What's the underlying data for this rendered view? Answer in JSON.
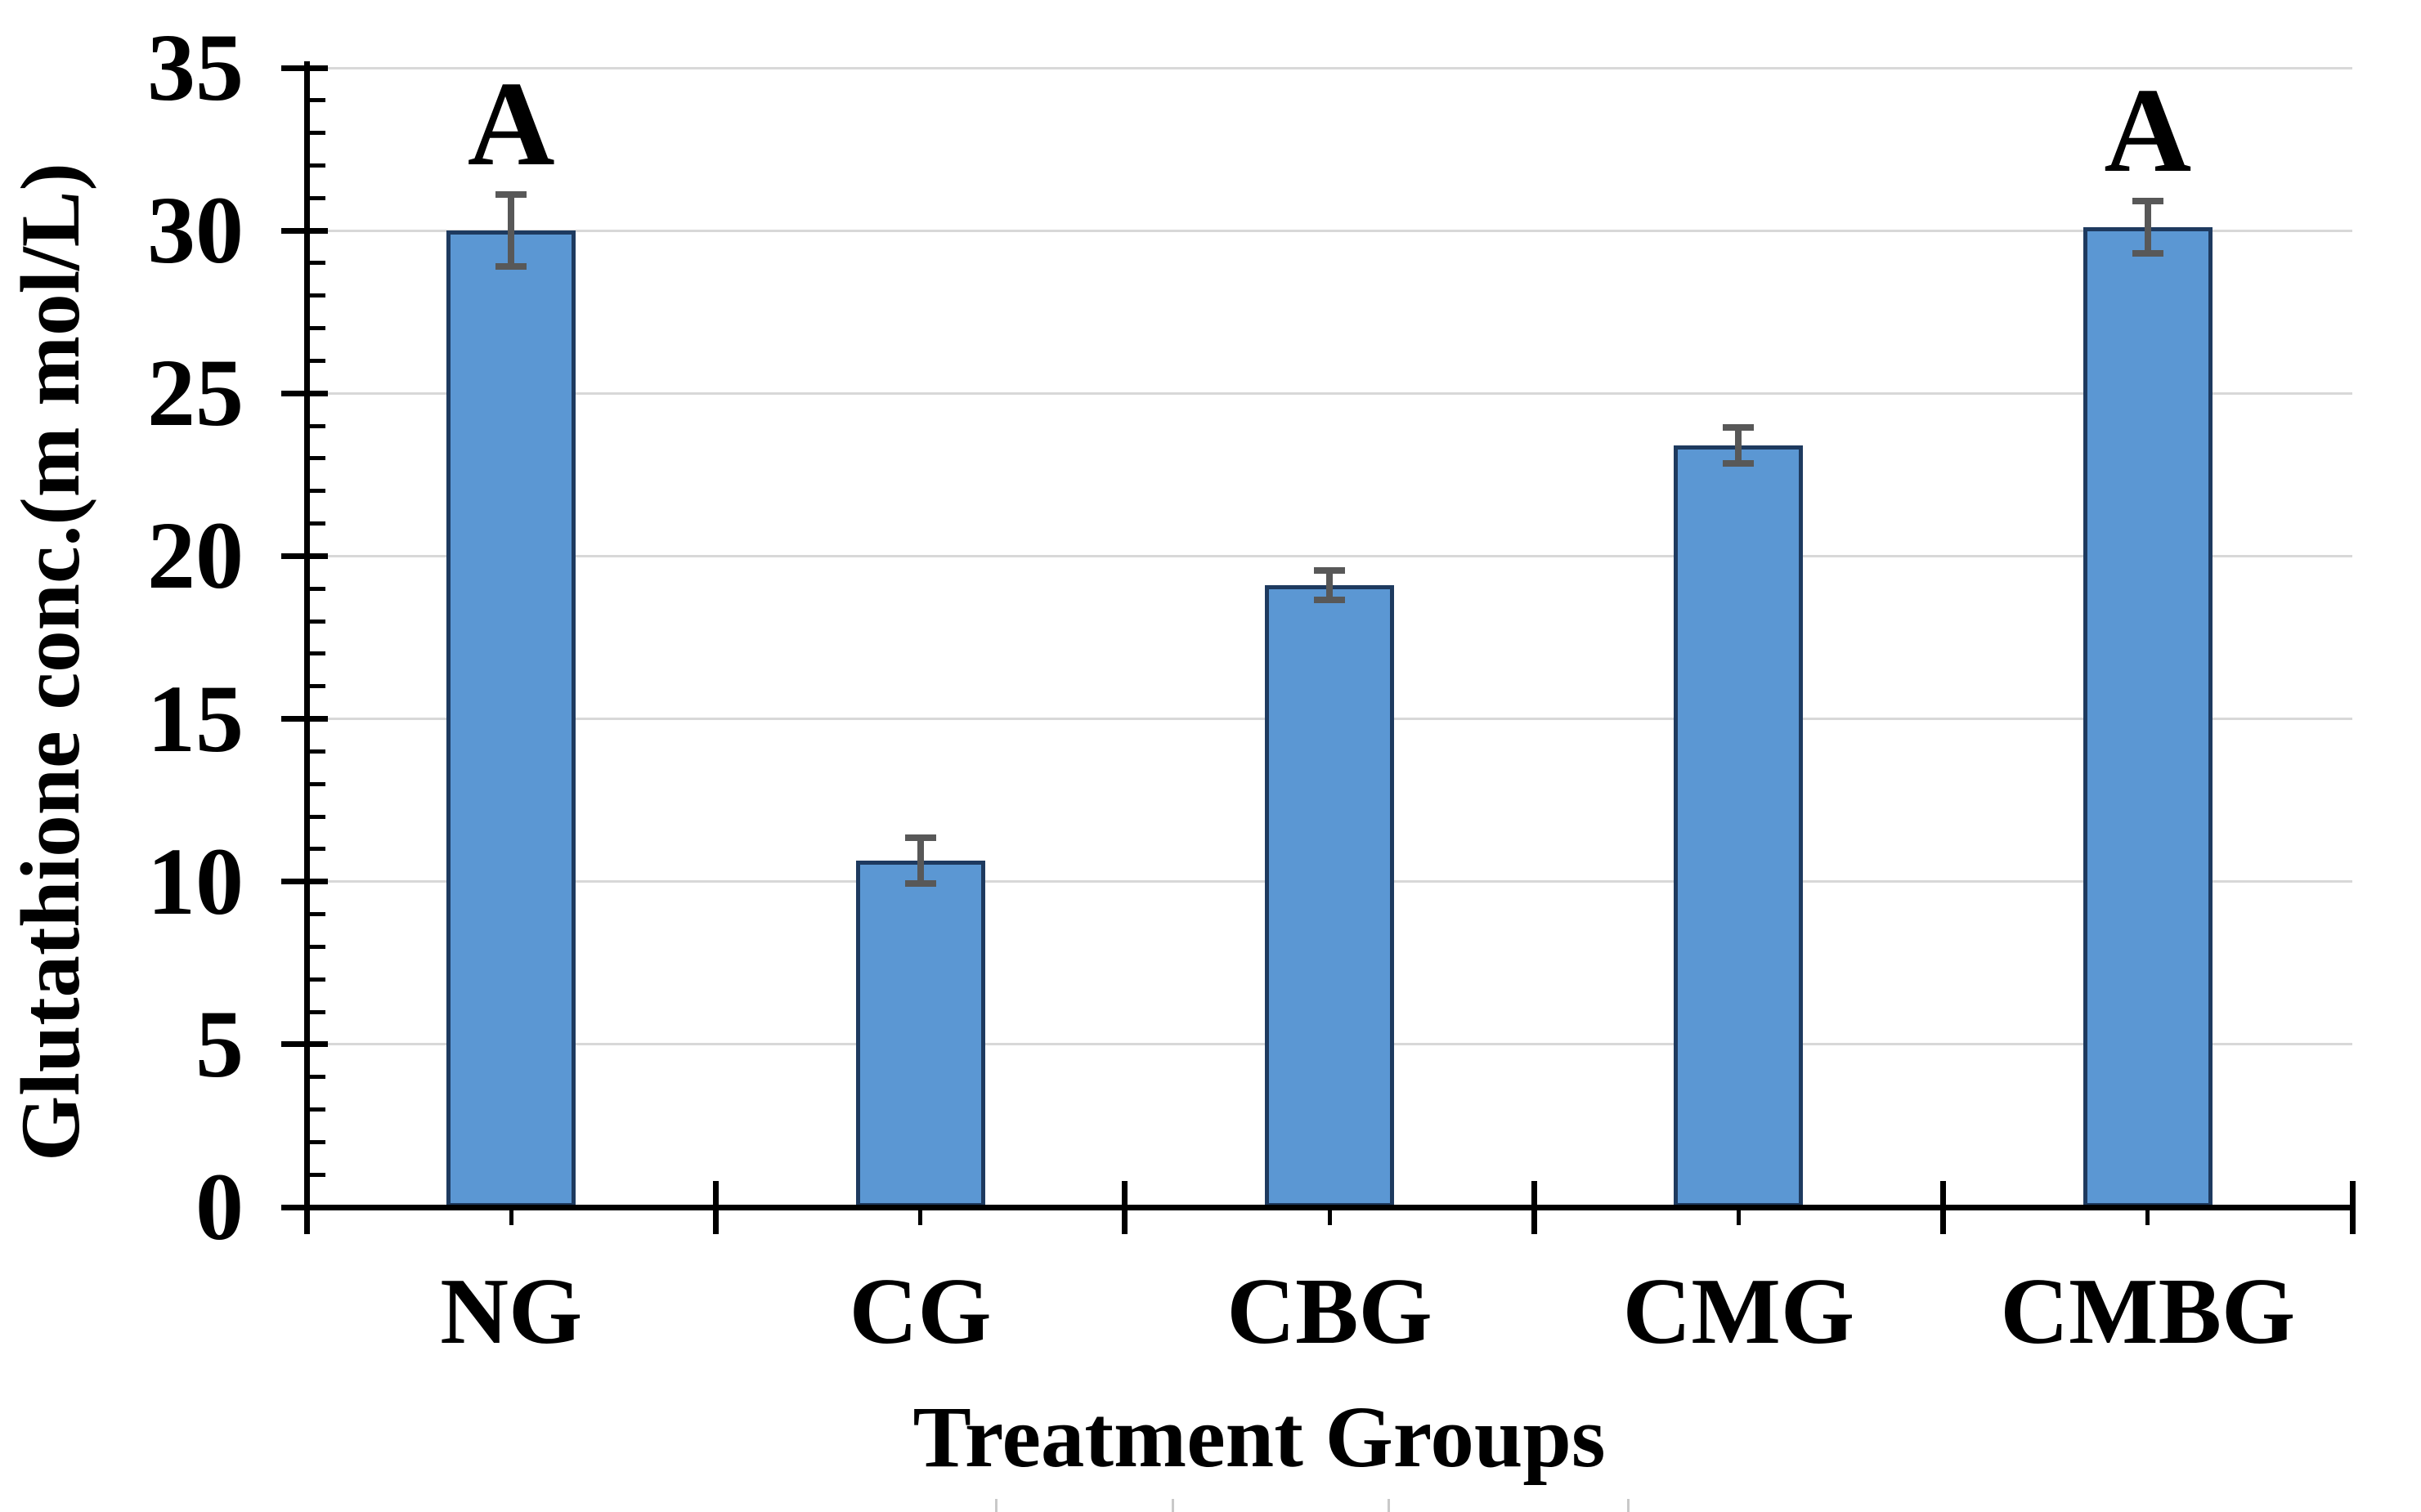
{
  "chart_data": {
    "type": "bar",
    "title": "",
    "xlabel": "Treatment Groups",
    "ylabel": "Glutathione conc.(m mol/L)",
    "categories": [
      "NG",
      "CG",
      "CBG",
      "CMG",
      "CMBG"
    ],
    "values": [
      30.0,
      10.65,
      19.1,
      23.4,
      30.1
    ],
    "error_bars": [
      1.1,
      0.7,
      0.45,
      0.55,
      0.8
    ],
    "significance_letters": [
      "A",
      "",
      "",
      "",
      "A"
    ],
    "ylim": [
      0,
      35
    ],
    "y_major_step": 5,
    "y_minor_step": 1,
    "y_tick_labels": [
      "0",
      "5",
      "10",
      "15",
      "20",
      "25",
      "30",
      "35"
    ],
    "grid": "horizontal-major-on",
    "legend": "none",
    "colors": {
      "bar_fill": "#5b97d3",
      "bar_border": "#1e3a5f",
      "error_bar": "#585858",
      "gridline": "#d8d8d8",
      "axis": "#000000",
      "text": "#000000",
      "background": "#ffffff",
      "crop_artifact": "#c9c9c9"
    }
  }
}
